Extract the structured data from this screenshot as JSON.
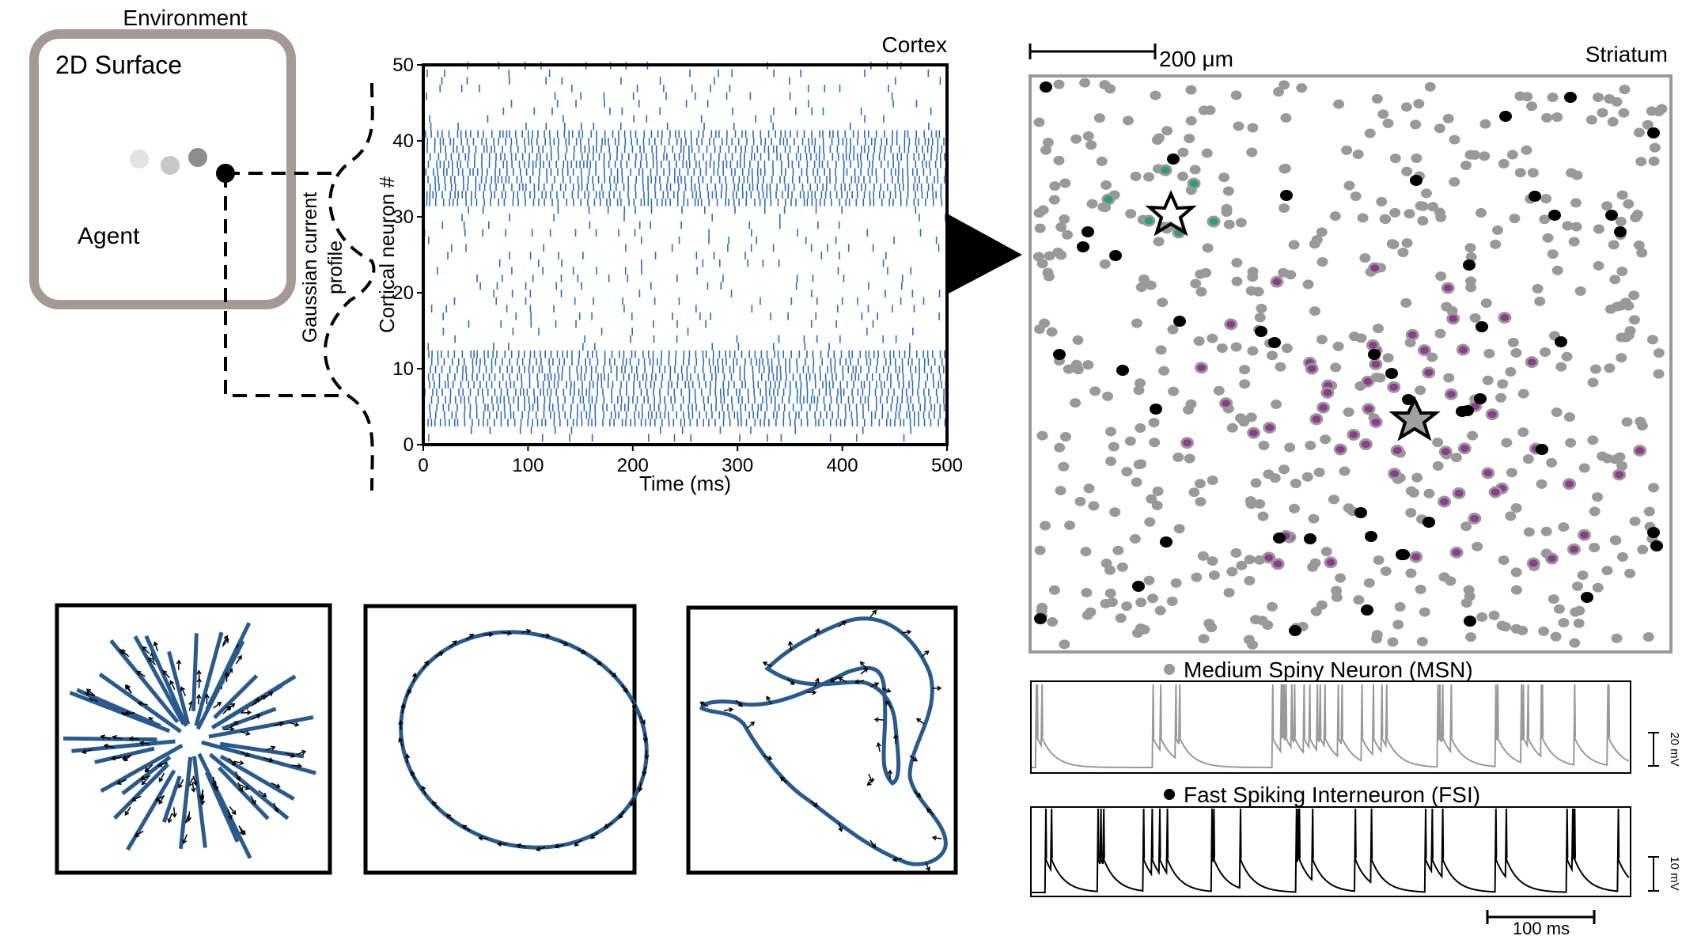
{
  "environment": {
    "title": "Environment",
    "surface_label": "2D Surface",
    "agent_label": "Agent",
    "profile_label_line1": "Gaussian current",
    "profile_label_line2": "profile"
  },
  "cortex": {
    "title": "Cortex",
    "xlabel": "Time (ms)",
    "ylabel": "Cortical neuron #",
    "x_ticks": [
      "0",
      "100",
      "200",
      "300",
      "400",
      "500"
    ],
    "y_ticks": [
      "0",
      "10",
      "20",
      "30",
      "40",
      "50"
    ],
    "xlim": [
      0,
      500
    ],
    "ylim": [
      0,
      50
    ],
    "dense_bands": [
      [
        2,
        11
      ],
      [
        31,
        40
      ]
    ]
  },
  "striatum": {
    "title": "Striatum",
    "scale_bar_label": "200 μm"
  },
  "traces": {
    "msn_label": "Medium Spiny Neuron (MSN)",
    "fsi_label": "Fast Spiking Interneuron (FSI)",
    "msn_scale_label": "20 mV",
    "fsi_scale_label": "10 mV",
    "time_scale_label": "100 ms"
  },
  "colors": {
    "spike_blue": "#2f6db0",
    "trajectory_blue": "#2a5a8c",
    "msn_gray": "#999999",
    "fsi_black": "#000000",
    "highlight_green": "#2e9e6e",
    "highlight_purple": "#8e3a8e",
    "env_frame": "#a39a96"
  },
  "icons": {
    "star_fsi": "star-outline-icon",
    "star_msn": "star-outline-icon"
  }
}
